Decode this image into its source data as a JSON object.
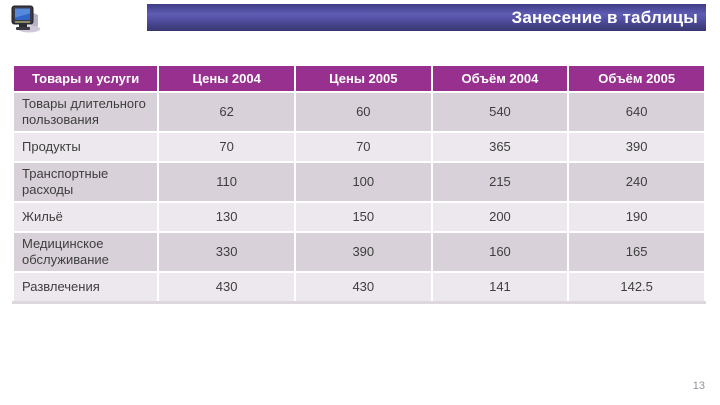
{
  "slide": {
    "title": "Занесение в таблицы",
    "page_number": "13"
  },
  "colors": {
    "title_bar_top": "#403e86",
    "title_bar_mid": "#5f5cb4",
    "title_bar_bottom": "#383670",
    "table_header_bg": "#97308f",
    "row_dark": "#d9d1d9",
    "row_light": "#ede8ed",
    "body_text": "#3e3e3e",
    "page_number_text": "#8f969e"
  },
  "icons": {
    "computer": "computer-icon"
  },
  "table": {
    "headers": [
      "Товары и услуги",
      "Цены 2004",
      "Цены 2005",
      "Объём 2004",
      "Объём 2005"
    ],
    "rows": [
      {
        "label": "Товары длительного пользования",
        "values": [
          "62",
          "60",
          "540",
          "640"
        ]
      },
      {
        "label": "Продукты",
        "values": [
          "70",
          "70",
          "365",
          "390"
        ]
      },
      {
        "label": "Транспортные расходы",
        "values": [
          "110",
          "100",
          "215",
          "240"
        ]
      },
      {
        "label": "Жильё",
        "values": [
          "130",
          "150",
          "200",
          "190"
        ]
      },
      {
        "label": "Медицинское обслуживание",
        "values": [
          "330",
          "390",
          "160",
          "165"
        ]
      },
      {
        "label": "Развлечения",
        "values": [
          "430",
          "430",
          "141",
          "142.5"
        ]
      }
    ]
  }
}
